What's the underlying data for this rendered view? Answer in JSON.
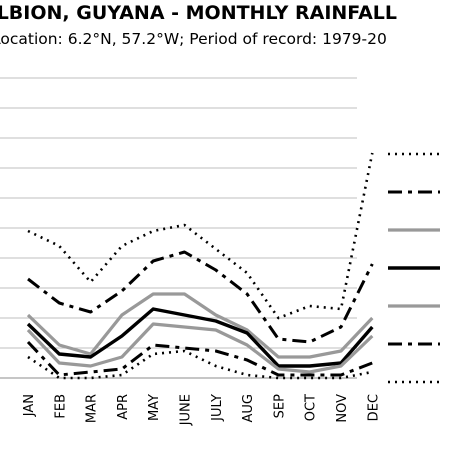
{
  "chart_data": {
    "type": "line",
    "title": "ALBION, GUYANA - MONTHLY RAINFALL",
    "subtitle": "Location: 6.2°N, 57.2°W; Period of record: 1979-20",
    "categories": [
      "JAN",
      "FEB",
      "MAR",
      "APR",
      "MAY",
      "JUNE",
      "JULY",
      "AUG",
      "SEP",
      "OCT",
      "NOV",
      "DEC"
    ],
    "ylim": [
      0,
      10
    ],
    "grid": true,
    "legend_position": "right",
    "series": [
      {
        "values": [
          4.9,
          4.4,
          3.2,
          4.4,
          4.9,
          5.1,
          4.3,
          3.5,
          2.0,
          2.4,
          2.3,
          7.5
        ],
        "color": "#000000",
        "style": "dotted"
      },
      {
        "values": [
          3.3,
          2.5,
          2.2,
          2.9,
          3.9,
          4.2,
          3.6,
          2.8,
          1.3,
          1.2,
          1.7,
          3.8
        ],
        "color": "#000000",
        "style": "dashdot"
      },
      {
        "values": [
          2.1,
          1.1,
          0.8,
          2.1,
          2.8,
          2.8,
          2.1,
          1.6,
          0.7,
          0.7,
          0.9,
          2.0
        ],
        "color": "#999999",
        "style": "solid"
      },
      {
        "values": [
          1.8,
          0.8,
          0.7,
          1.4,
          2.3,
          2.1,
          1.9,
          1.5,
          0.4,
          0.4,
          0.5,
          1.7
        ],
        "color": "#000000",
        "style": "solid"
      },
      {
        "values": [
          1.6,
          0.5,
          0.4,
          0.7,
          1.8,
          1.7,
          1.6,
          1.1,
          0.3,
          0.2,
          0.4,
          1.4
        ],
        "color": "#999999",
        "style": "solid"
      },
      {
        "values": [
          1.2,
          0.1,
          0.2,
          0.3,
          1.1,
          1.0,
          0.9,
          0.6,
          0.1,
          0.1,
          0.1,
          0.5
        ],
        "color": "#000000",
        "style": "dashdot"
      },
      {
        "values": [
          0.7,
          0.0,
          0.0,
          0.1,
          0.8,
          0.9,
          0.4,
          0.1,
          0.0,
          0.0,
          0.0,
          0.2
        ],
        "color": "#000000",
        "style": "dotted"
      }
    ]
  }
}
